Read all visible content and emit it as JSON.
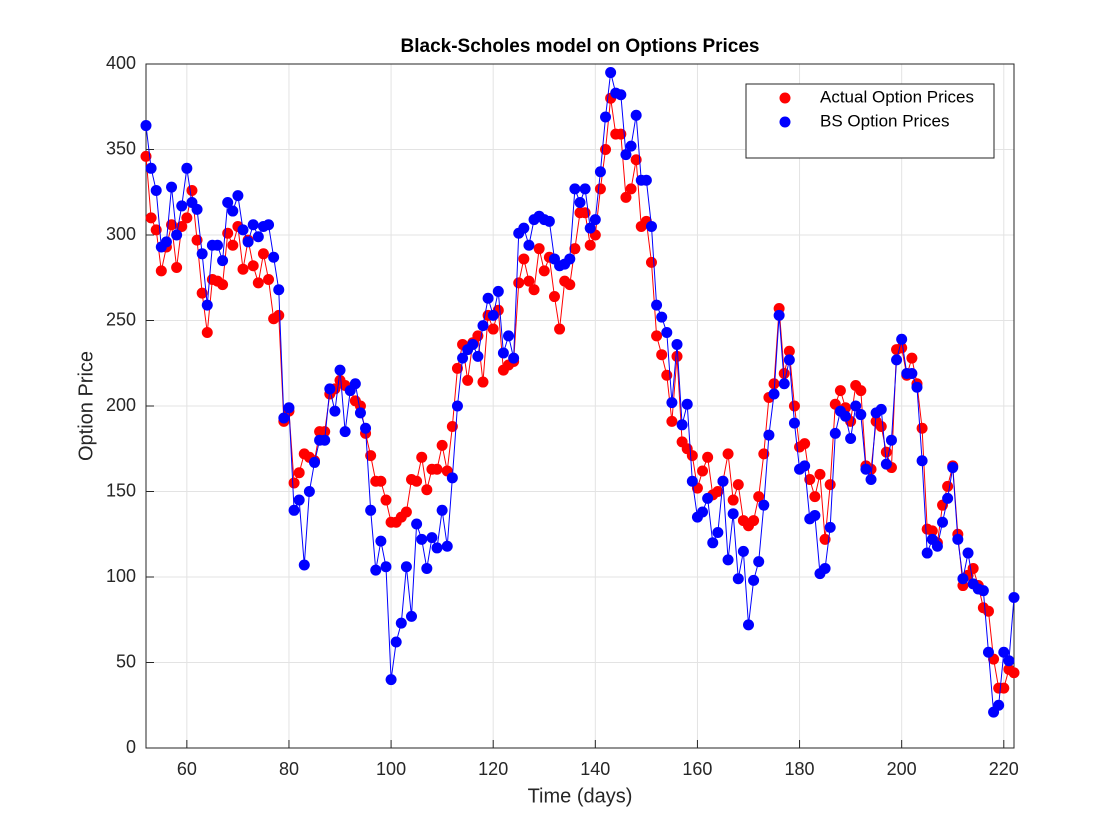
{
  "chart_data": {
    "type": "line",
    "title": "Black-Scholes model on Options Prices",
    "x_label": "Time (days)",
    "y_label": "Option Price",
    "x": [
      52,
      53,
      54,
      55,
      56,
      57,
      58,
      59,
      60,
      61,
      62,
      63,
      64,
      65,
      66,
      67,
      68,
      69,
      70,
      71,
      72,
      73,
      74,
      75,
      76,
      77,
      78,
      79,
      80,
      81,
      82,
      83,
      84,
      85,
      86,
      87,
      88,
      89,
      90,
      91,
      92,
      93,
      94,
      95,
      96,
      97,
      98,
      99,
      100,
      101,
      102,
      103,
      104,
      105,
      106,
      107,
      108,
      109,
      110,
      111,
      112,
      113,
      114,
      115,
      116,
      117,
      118,
      119,
      120,
      121,
      122,
      123,
      124,
      125,
      126,
      127,
      128,
      129,
      130,
      131,
      132,
      133,
      134,
      135,
      136,
      137,
      138,
      139,
      140,
      141,
      142,
      143,
      144,
      145,
      146,
      147,
      148,
      149,
      150,
      151,
      152,
      153,
      154,
      155,
      156,
      157,
      158,
      159,
      160,
      161,
      162,
      163,
      164,
      165,
      166,
      167,
      168,
      169,
      170,
      171,
      172,
      173,
      174,
      175,
      176,
      177,
      178,
      179,
      180,
      181,
      182,
      183,
      184,
      185,
      186,
      187,
      188,
      189,
      190,
      191,
      192,
      193,
      194,
      195,
      196,
      197,
      198,
      199,
      200,
      201,
      202,
      203,
      204,
      205,
      206,
      207,
      208,
      209,
      210,
      211,
      212,
      213,
      214,
      215,
      216,
      217,
      218,
      219,
      220,
      221,
      222
    ],
    "series": [
      {
        "name": "Actual Option Prices",
        "color": "#ff0000",
        "values": [
          346,
          310,
          303,
          279,
          293,
          306,
          281,
          305,
          310,
          326,
          297,
          266,
          243,
          274,
          273,
          271,
          301,
          294,
          305,
          280,
          297,
          282,
          272,
          289,
          274,
          251,
          253,
          191,
          197,
          155,
          161,
          172,
          170,
          168,
          185,
          185,
          207,
          210,
          215,
          212,
          210,
          203,
          200,
          184,
          171,
          156,
          156,
          145,
          132,
          132,
          135,
          138,
          157,
          156,
          170,
          151,
          163,
          163,
          177,
          162,
          188,
          222,
          236,
          215,
          237,
          241,
          214,
          253,
          245,
          256,
          221,
          224,
          226,
          272,
          286,
          273,
          268,
          292,
          279,
          287,
          264,
          245,
          273,
          271,
          292,
          313,
          313,
          294,
          300,
          327,
          350,
          380,
          359,
          359,
          322,
          327,
          344,
          305,
          308,
          284,
          241,
          230,
          218,
          191,
          229,
          179,
          175,
          171,
          152,
          162,
          170,
          148,
          150,
          156,
          172,
          145,
          154,
          133,
          130,
          133,
          147,
          172,
          205,
          213,
          257,
          219,
          232,
          200,
          176,
          178,
          157,
          147,
          160,
          122,
          154,
          201,
          209,
          199,
          191,
          212,
          209,
          165,
          163,
          191,
          188,
          173,
          164,
          233,
          234,
          218,
          228,
          213,
          187,
          128,
          127,
          120,
          142,
          153,
          165,
          125,
          95,
          101,
          105,
          95,
          82,
          80,
          52,
          35,
          35,
          46,
          44
        ]
      },
      {
        "name": "BS Option Prices",
        "color": "#0000ff",
        "values": [
          364,
          339,
          326,
          293,
          296,
          328,
          300,
          317,
          339,
          319,
          315,
          289,
          259,
          294,
          294,
          285,
          319,
          314,
          323,
          303,
          296,
          306,
          299,
          305,
          306,
          287,
          268,
          193,
          199,
          139,
          145,
          107,
          150,
          167,
          180,
          180,
          210,
          197,
          221,
          185,
          209,
          213,
          196,
          187,
          139,
          104,
          121,
          106,
          40,
          62,
          73,
          106,
          77,
          131,
          122,
          105,
          123,
          117,
          139,
          118,
          158,
          200,
          228,
          233,
          236,
          229,
          247,
          263,
          253,
          267,
          231,
          241,
          228,
          301,
          304,
          294,
          309,
          311,
          309,
          308,
          286,
          282,
          283,
          286,
          327,
          319,
          327,
          304,
          309,
          337,
          369,
          395,
          383,
          382,
          347,
          352,
          370,
          332,
          332,
          305,
          259,
          252,
          243,
          202,
          236,
          189,
          201,
          156,
          135,
          138,
          146,
          120,
          126,
          156,
          110,
          137,
          99,
          115,
          72,
          98,
          109,
          142,
          183,
          207,
          253,
          213,
          227,
          190,
          163,
          165,
          134,
          136,
          102,
          105,
          129,
          184,
          197,
          194,
          181,
          200,
          195,
          163,
          157,
          196,
          198,
          166,
          180,
          227,
          239,
          219,
          219,
          211,
          168,
          114,
          122,
          118,
          132,
          146,
          164,
          122,
          99,
          114,
          96,
          93,
          92,
          56,
          21,
          25,
          56,
          51,
          88
        ]
      }
    ],
    "xlim": [
      52,
      222
    ],
    "xticks": [
      60,
      80,
      100,
      120,
      140,
      160,
      180,
      200,
      220
    ],
    "ylim": [
      0,
      400
    ],
    "yticks": [
      0,
      50,
      100,
      150,
      200,
      250,
      300,
      350,
      400
    ],
    "grid": true,
    "legend": "northeast"
  }
}
